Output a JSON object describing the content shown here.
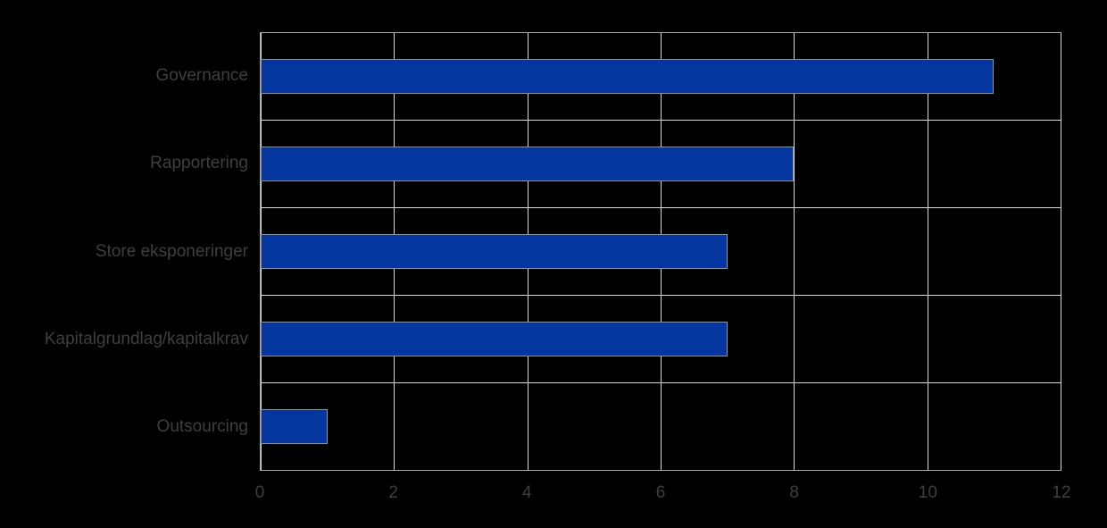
{
  "chart_data": {
    "type": "bar",
    "orientation": "horizontal",
    "title": "",
    "xlabel": "",
    "ylabel": "",
    "categories": [
      "Governance",
      "Rapportering",
      "Store eksponeringer",
      "Kapitalgrundlag/kapitalkrav",
      "Outsourcing"
    ],
    "values": [
      11,
      8,
      7,
      7,
      1
    ],
    "xlim": [
      0,
      12
    ],
    "xticks": [
      0,
      2,
      4,
      6,
      8,
      10,
      12
    ],
    "xtick_labels": [
      "0",
      "2",
      "4",
      "6",
      "8",
      "10",
      "12"
    ],
    "grid": true,
    "legend": false
  },
  "colors": {
    "bar": "#0536a0",
    "bar_border": "#8593ab",
    "gridline": "#d9d9d9",
    "plot_border": "#a6a6a6",
    "text": "#3f3f3f",
    "background": "#000000"
  }
}
